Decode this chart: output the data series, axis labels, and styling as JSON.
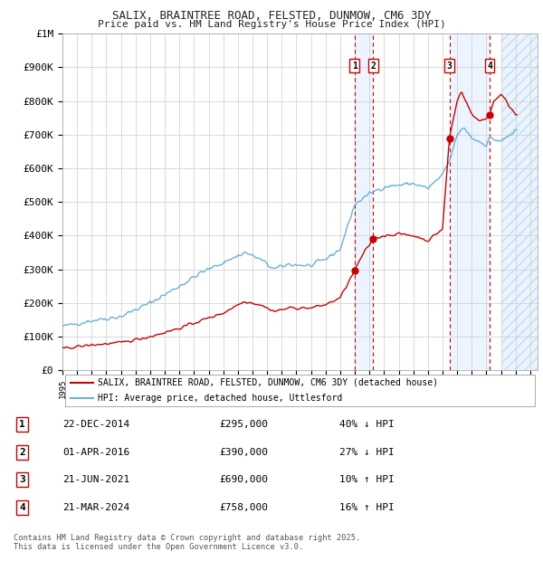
{
  "title": "SALIX, BRAINTREE ROAD, FELSTED, DUNMOW, CM6 3DY",
  "subtitle": "Price paid vs. HM Land Registry's House Price Index (HPI)",
  "ylim": [
    0,
    1000000
  ],
  "xlim_start": 1995.0,
  "xlim_end": 2027.5,
  "yticks": [
    0,
    100000,
    200000,
    300000,
    400000,
    500000,
    600000,
    700000,
    800000,
    900000,
    1000000
  ],
  "ytick_labels": [
    "£0",
    "£100K",
    "£200K",
    "£300K",
    "£400K",
    "£500K",
    "£600K",
    "£700K",
    "£800K",
    "£900K",
    "£1M"
  ],
  "xticks": [
    1995,
    1996,
    1997,
    1998,
    1999,
    2000,
    2001,
    2002,
    2003,
    2004,
    2005,
    2006,
    2007,
    2008,
    2009,
    2010,
    2011,
    2012,
    2013,
    2014,
    2015,
    2016,
    2017,
    2018,
    2019,
    2020,
    2021,
    2022,
    2023,
    2024,
    2025,
    2026,
    2027
  ],
  "background_color": "#ffffff",
  "plot_bg_color": "#ffffff",
  "grid_color": "#cccccc",
  "hatch_start": 2025.0,
  "transactions": [
    {
      "num": 1,
      "date": "22-DEC-2014",
      "price": 295000,
      "pct": "40%",
      "dir": "↓",
      "year": 2014.97
    },
    {
      "num": 2,
      "date": "01-APR-2016",
      "price": 390000,
      "pct": "27%",
      "dir": "↓",
      "year": 2016.25
    },
    {
      "num": 3,
      "date": "21-JUN-2021",
      "price": 690000,
      "pct": "10%",
      "dir": "↑",
      "year": 2021.47
    },
    {
      "num": 4,
      "date": "21-MAR-2024",
      "price": 758000,
      "pct": "16%",
      "dir": "↑",
      "year": 2024.22
    }
  ],
  "legend_line1": "SALIX, BRAINTREE ROAD, FELSTED, DUNMOW, CM6 3DY (detached house)",
  "legend_line2": "HPI: Average price, detached house, Uttlesford",
  "footer1": "Contains HM Land Registry data © Crown copyright and database right 2025.",
  "footer2": "This data is licensed under the Open Government Licence v3.0.",
  "red_color": "#cc0000",
  "blue_color": "#6ab0d8",
  "highlight_color": "#ddeeff"
}
